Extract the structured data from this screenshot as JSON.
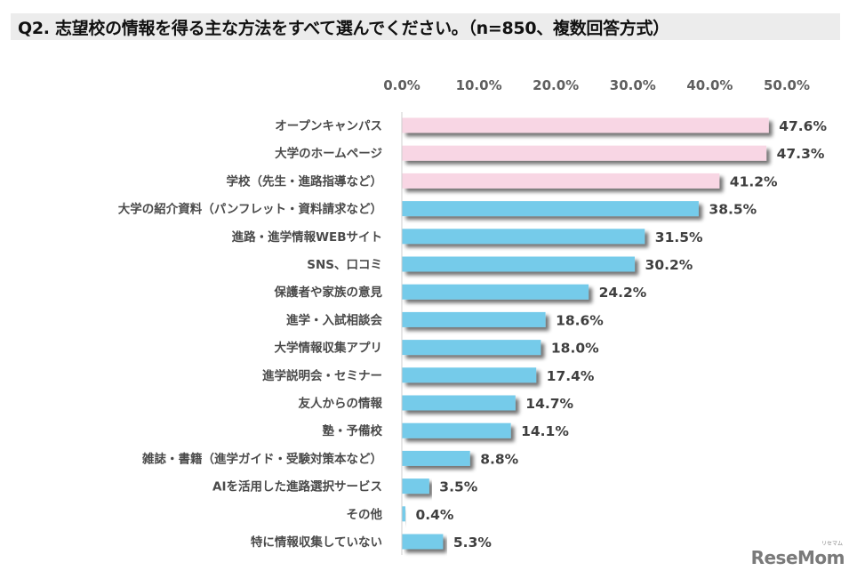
{
  "title": "Q2. 志望校の情報を得る主な方法をすべて選んでください。（n=850、複数回答方式）",
  "logo": {
    "text": "ReseMom",
    "sub": "リセマム"
  },
  "colors": {
    "highlight": "#f8d6e4",
    "normal": "#74cbea",
    "shadow": "#8c8c8c",
    "axis": "#cfcfcf"
  },
  "chart_data": {
    "type": "bar",
    "orientation": "horizontal",
    "title": "Q2. 志望校の情報を得る主な方法をすべて選んでください。（n=850、複数回答方式）",
    "xlabel": "",
    "ylabel": "",
    "xlim": [
      0,
      50
    ],
    "ticks": [
      "0.0%",
      "10.0%",
      "20.0%",
      "30.0%",
      "40.0%",
      "50.0%"
    ],
    "tick_values": [
      0,
      10,
      20,
      30,
      40,
      50
    ],
    "tick_position": "top",
    "grid": false,
    "categories": [
      "オープンキャンパス",
      "大学のホームページ",
      "学校（先生・進路指導など）",
      "大学の紹介資料（パンフレット・資料請求など）",
      "進路・進学情報WEBサイト",
      "SNS、口コミ",
      "保護者や家族の意見",
      "進学・入試相談会",
      "大学情報収集アプリ",
      "進学説明会・セミナー",
      "友人からの情報",
      "塾・予備校",
      "雑誌・書籍（進学ガイド・受験対策本など）",
      "AIを活用した進路選択サービス",
      "その他",
      "特に情報収集していない"
    ],
    "values": [
      47.6,
      47.3,
      41.2,
      38.5,
      31.5,
      30.2,
      24.2,
      18.6,
      18.0,
      17.4,
      14.7,
      14.1,
      8.8,
      3.5,
      0.4,
      5.3
    ],
    "value_labels": [
      "47.6%",
      "47.3%",
      "41.2%",
      "38.5%",
      "31.5%",
      "30.2%",
      "24.2%",
      "18.6%",
      "18.0%",
      "17.4%",
      "14.7%",
      "14.1%",
      "8.8%",
      "3.5%",
      "0.4%",
      "5.3%"
    ],
    "highlighted": [
      true,
      true,
      true,
      false,
      false,
      false,
      false,
      false,
      false,
      false,
      false,
      false,
      false,
      false,
      false,
      false
    ]
  }
}
